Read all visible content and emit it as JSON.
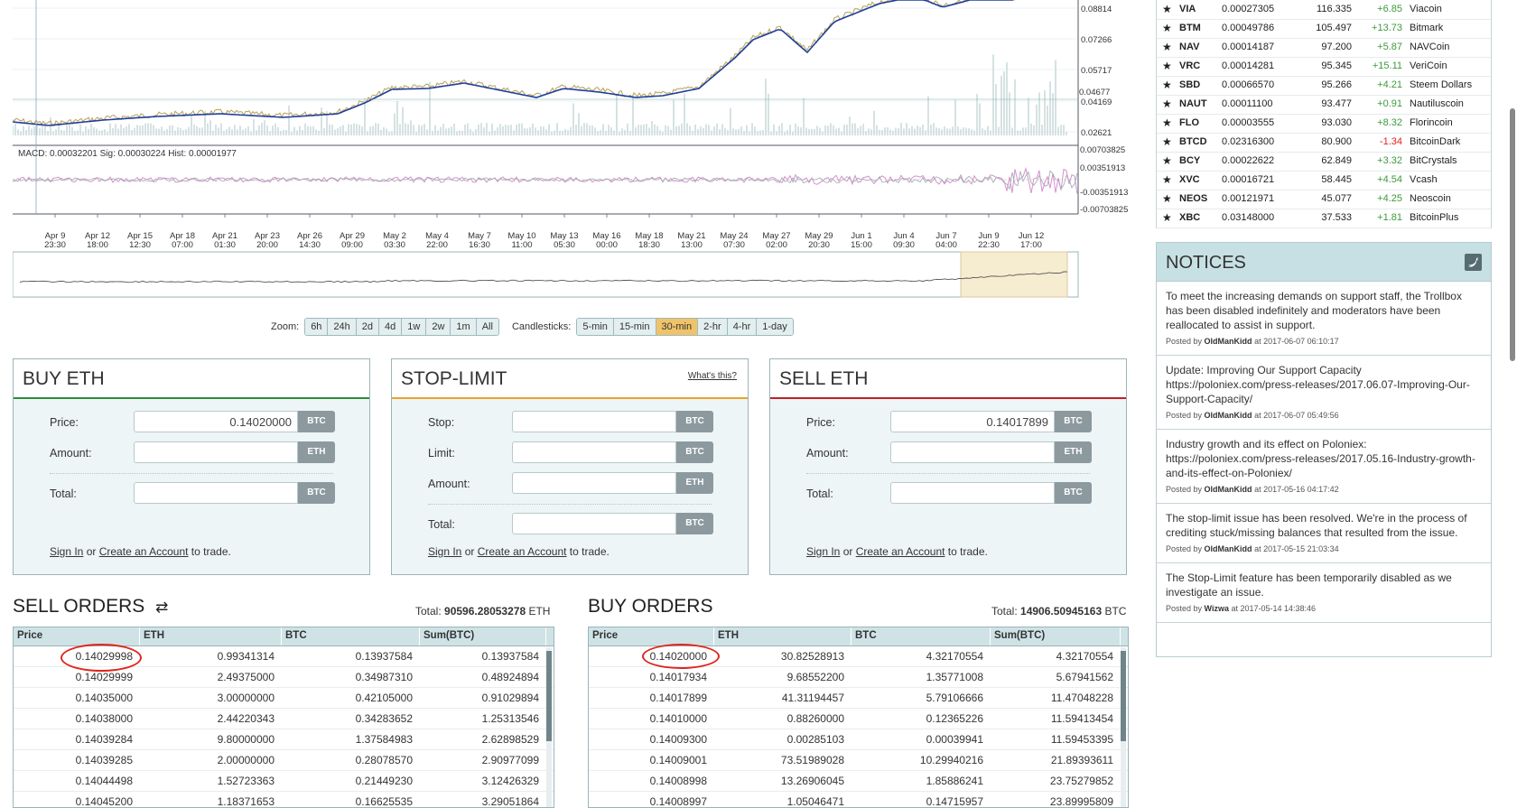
{
  "chart": {
    "price_ticks": [
      "0.08814",
      "0.07266",
      "0.05717",
      "0.04677",
      "0.04169",
      "0.02621"
    ],
    "macd_ticks": [
      "0.00703825",
      "0.00351913",
      "-0.00351913",
      "-0.00703825"
    ],
    "macd_text": "MACD: 0.00032201   Sig: 0.00030224   Hist: 0.00001977",
    "x_labels": [
      [
        "Apr 9",
        "23:30"
      ],
      [
        "Apr 12",
        "18:00"
      ],
      [
        "Apr 15",
        "12:30"
      ],
      [
        "Apr 18",
        "07:00"
      ],
      [
        "Apr 21",
        "01:30"
      ],
      [
        "Apr 23",
        "20:00"
      ],
      [
        "Apr 26",
        "14:30"
      ],
      [
        "Apr 29",
        "09:00"
      ],
      [
        "May 2",
        "03:30"
      ],
      [
        "May 4",
        "22:00"
      ],
      [
        "May 7",
        "16:30"
      ],
      [
        "May 10",
        "11:00"
      ],
      [
        "May 13",
        "05:30"
      ],
      [
        "May 16",
        "00:00"
      ],
      [
        "May 18",
        "18:30"
      ],
      [
        "May 21",
        "13:00"
      ],
      [
        "May 24",
        "07:30"
      ],
      [
        "May 27",
        "02:00"
      ],
      [
        "May 29",
        "20:30"
      ],
      [
        "Jun 1",
        "15:00"
      ],
      [
        "Jun 4",
        "09:30"
      ],
      [
        "Jun 7",
        "04:00"
      ],
      [
        "Jun 9",
        "22:30"
      ],
      [
        "Jun 12",
        "17:00"
      ]
    ]
  },
  "zoom": {
    "label": "Zoom:",
    "options": [
      "6h",
      "24h",
      "2d",
      "4d",
      "1w",
      "2w",
      "1m",
      "All"
    ],
    "candle_label": "Candlesticks:",
    "candles": [
      "5-min",
      "15-min",
      "30-min",
      "2-hr",
      "4-hr",
      "1-day"
    ],
    "active_candle": "30-min"
  },
  "buy_panel": {
    "title": "BUY ETH",
    "price_label": "Price:",
    "price_value": "0.14020000",
    "price_unit": "BTC",
    "amount_label": "Amount:",
    "amount_unit": "ETH",
    "total_label": "Total:",
    "total_unit": "BTC",
    "accent": "#2e8b3d"
  },
  "stop_panel": {
    "title": "STOP-LIMIT",
    "help": "What's this?",
    "stop_label": "Stop:",
    "stop_unit": "BTC",
    "limit_label": "Limit:",
    "limit_unit": "BTC",
    "amount_label": "Amount:",
    "amount_unit": "ETH",
    "total_label": "Total:",
    "total_unit": "BTC",
    "accent": "#e8a32b"
  },
  "sell_panel": {
    "title": "SELL ETH",
    "price_label": "Price:",
    "price_value": "0.14017899",
    "price_unit": "BTC",
    "amount_label": "Amount:",
    "amount_unit": "ETH",
    "total_label": "Total:",
    "total_unit": "BTC",
    "accent": "#c0202a"
  },
  "signin": {
    "sign_in": "Sign In",
    "or": "or",
    "create": "Create an Account",
    "suffix": "to trade."
  },
  "sell_orders": {
    "title": "SELL ORDERS",
    "swap_icon": "⇄",
    "total_label": "Total:",
    "total_value": "90596.28053278",
    "total_unit": "ETH",
    "columns": [
      "Price",
      "ETH",
      "BTC",
      "Sum(BTC)"
    ],
    "rows": [
      [
        "0.14029998",
        "0.99341314",
        "0.13937584",
        "0.13937584"
      ],
      [
        "0.14029999",
        "2.49375000",
        "0.34987310",
        "0.48924894"
      ],
      [
        "0.14035000",
        "3.00000000",
        "0.42105000",
        "0.91029894"
      ],
      [
        "0.14038000",
        "2.44220343",
        "0.34283652",
        "1.25313546"
      ],
      [
        "0.14039284",
        "9.80000000",
        "1.37584983",
        "2.62898529"
      ],
      [
        "0.14039285",
        "2.00000000",
        "0.28078570",
        "2.90977099"
      ],
      [
        "0.14044498",
        "1.52723363",
        "0.21449230",
        "3.12426329"
      ],
      [
        "0.14045200",
        "1.18371653",
        "0.16625535",
        "3.29051864"
      ]
    ]
  },
  "buy_orders": {
    "title": "BUY ORDERS",
    "total_label": "Total:",
    "total_value": "14906.50945163",
    "total_unit": "BTC",
    "columns": [
      "Price",
      "ETH",
      "BTC",
      "Sum(BTC)"
    ],
    "rows": [
      [
        "0.14020000",
        "30.82528913",
        "4.32170554",
        "4.32170554"
      ],
      [
        "0.14017934",
        "9.68552200",
        "1.35771008",
        "5.67941562"
      ],
      [
        "0.14017899",
        "41.31194457",
        "5.79106666",
        "11.47048228"
      ],
      [
        "0.14010000",
        "0.88260000",
        "0.12365226",
        "11.59413454"
      ],
      [
        "0.14009300",
        "0.00285103",
        "0.00039941",
        "11.59453395"
      ],
      [
        "0.14009001",
        "73.51989028",
        "10.29940216",
        "21.89393611"
      ],
      [
        "0.14008998",
        "13.26906045",
        "1.85886241",
        "23.75279852"
      ],
      [
        "0.14008997",
        "1.05046471",
        "0.14715957",
        "23.89995809"
      ]
    ]
  },
  "coins": [
    [
      "VIA",
      "0.00027305",
      "116.335",
      "+6.85",
      "Viacoin"
    ],
    [
      "BTM",
      "0.00049786",
      "105.497",
      "+13.73",
      "Bitmark"
    ],
    [
      "NAV",
      "0.00014187",
      "97.200",
      "+5.87",
      "NAVCoin"
    ],
    [
      "VRC",
      "0.00014281",
      "95.345",
      "+15.11",
      "VeriCoin"
    ],
    [
      "SBD",
      "0.00066570",
      "95.266",
      "+4.21",
      "Steem Dollars"
    ],
    [
      "NAUT",
      "0.00011100",
      "93.477",
      "+0.91",
      "Nautiluscoin"
    ],
    [
      "FLO",
      "0.00003555",
      "93.030",
      "+8.32",
      "Florincoin"
    ],
    [
      "BTCD",
      "0.02316300",
      "80.900",
      "-1.34",
      "BitcoinDark"
    ],
    [
      "BCY",
      "0.00022622",
      "62.849",
      "+3.32",
      "BitCrystals"
    ],
    [
      "XVC",
      "0.00016721",
      "58.445",
      "+4.54",
      "Vcash"
    ],
    [
      "NEOS",
      "0.00121971",
      "45.077",
      "+4.25",
      "Neoscoin"
    ],
    [
      "XBC",
      "0.03148000",
      "37.533",
      "+1.81",
      "BitcoinPlus"
    ]
  ],
  "notices": {
    "title": "NOTICES",
    "items": [
      {
        "body": "To meet the increasing demands on support staff, the Trollbox has been disabled indefinitely and moderators have been reallocated to assist in support.",
        "posted": "Posted by",
        "author": "OldManKidd",
        "date": "at 2017-06-07 06:10:17"
      },
      {
        "body": "Update: Improving Our Support Capacity https://poloniex.com/press-releases/2017.06.07-Improving-Our-Support-Capacity/",
        "posted": "Posted by",
        "author": "OldManKidd",
        "date": "at 2017-06-07 05:49:56"
      },
      {
        "body": "Industry growth and its effect on Poloniex: https://poloniex.com/press-releases/2017.05.16-Industry-growth-and-its-effect-on-Poloniex/",
        "posted": "Posted by",
        "author": "OldManKidd",
        "date": "at 2017-05-16 04:17:42"
      },
      {
        "body": "The stop-limit issue has been resolved. We're in the process of crediting stuck/missing balances that resulted from the issue.",
        "posted": "Posted by",
        "author": "OldManKidd",
        "date": "at 2017-05-15 21:03:34"
      },
      {
        "body": "The Stop-Limit feature has been temporarily disabled as we investigate an issue.",
        "posted": "Posted by",
        "author": "Wizwa",
        "date": "at 2017-05-14 14:38:46"
      }
    ]
  },
  "colors": {
    "positive": "#3d9a3d",
    "negative": "#dd2222",
    "highlight_circle": "#e0261d",
    "active_button": "#f0c36a"
  }
}
